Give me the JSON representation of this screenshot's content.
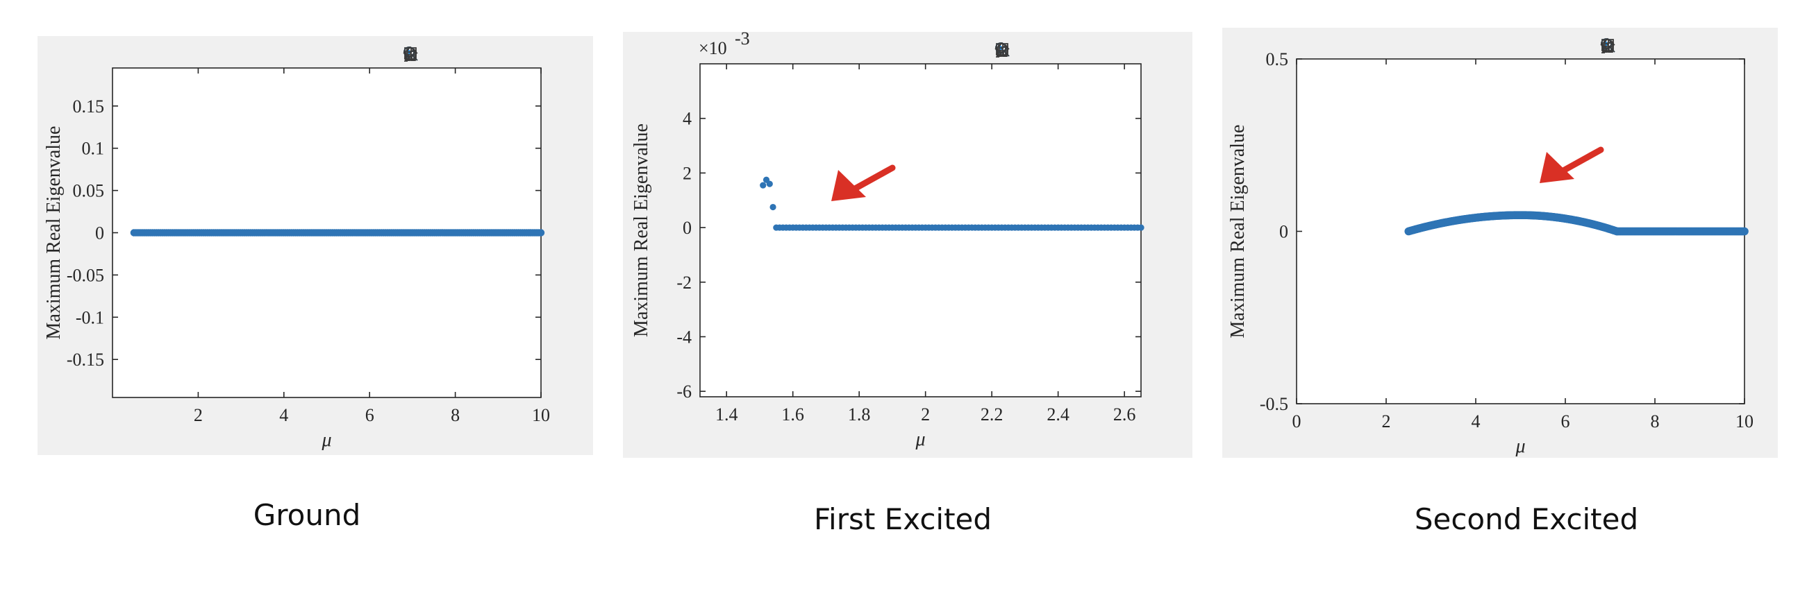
{
  "colors": {
    "series": "#2e74b5",
    "arrow": "#d93025",
    "panel_bg": "#f0f0f0",
    "toolbar_icon": "#3a3a3a",
    "toolbar_active": "#1e8ee6"
  },
  "toolbar_icons": [
    "brush-icon",
    "data-tip-icon",
    "insert-legend-icon",
    "pan-hand-icon",
    "zoom-in-icon",
    "zoom-out-icon",
    "home-icon"
  ],
  "captions": [
    "Ground",
    "First Excited",
    "Second Excited"
  ],
  "chart_data": [
    {
      "type": "scatter",
      "title": "",
      "xlabel": "μ",
      "ylabel": "Maximum  Real  Eigenvalue",
      "xlim": [
        0,
        10
      ],
      "ylim": [
        -0.195,
        0.195
      ],
      "xticks": [
        2,
        4,
        6,
        8,
        10
      ],
      "xtick_labels": [
        "2",
        "4",
        "6",
        "8",
        "10"
      ],
      "yticks": [
        0.15,
        0.1,
        0.05,
        0,
        -0.05,
        -0.1,
        -0.15
      ],
      "ytick_labels": [
        "0.15",
        "0.1",
        "0.05",
        "0",
        "-0.05",
        "-0.1",
        "-0.15"
      ],
      "exponent_label": "",
      "series": [
        {
          "x_range": [
            0.5,
            10
          ],
          "points": 200,
          "y_constant": 0
        }
      ],
      "annotation_arrow": false
    },
    {
      "type": "scatter",
      "title": "",
      "xlabel": "μ",
      "ylabel": "Maximum  Real  Eigenvalue",
      "xlim": [
        1.32,
        2.65
      ],
      "ylim": [
        -6.2,
        6.0
      ],
      "xticks": [
        1.4,
        1.6,
        1.8,
        2,
        2.2,
        2.4,
        2.6
      ],
      "xtick_labels": [
        "1.4",
        "1.6",
        "1.8",
        "2",
        "2.2",
        "2.4",
        "2.6"
      ],
      "yticks": [
        4,
        2,
        0,
        -2,
        -4,
        -6
      ],
      "ytick_labels": [
        "4",
        "2",
        "0",
        "-2",
        "-4",
        "-6"
      ],
      "exponent_label": "×10",
      "exponent_power": "-3",
      "series": [
        {
          "explicit_points": [
            [
              1.51,
              1.55
            ],
            [
              1.52,
              1.75
            ],
            [
              1.53,
              1.6
            ],
            [
              1.54,
              0.75
            ]
          ],
          "x_range": [
            1.55,
            2.65
          ],
          "points": 111,
          "y_constant": 0
        }
      ],
      "annotation_arrow": true
    },
    {
      "type": "scatter",
      "title": "",
      "xlabel": "μ",
      "ylabel": "Maximum  Real  Eigenvalue",
      "xlim": [
        0,
        10
      ],
      "ylim": [
        -0.5,
        0.5
      ],
      "xticks": [
        0,
        2,
        4,
        6,
        8,
        10
      ],
      "xtick_labels": [
        "0",
        "2",
        "4",
        "6",
        "8",
        "10"
      ],
      "yticks": [
        0.5,
        0,
        -0.5
      ],
      "ytick_labels": [
        "0.5",
        "0",
        "-0.5"
      ],
      "exponent_label": "",
      "series": [
        {
          "curve": "hump",
          "x_range": [
            2.5,
            7.15
          ],
          "peak_x": 5.0,
          "peak_y": 0.047,
          "points": 240
        },
        {
          "x_range": [
            7.15,
            10
          ],
          "points": 120,
          "y_constant": 0
        }
      ],
      "annotation_arrow": true
    }
  ]
}
